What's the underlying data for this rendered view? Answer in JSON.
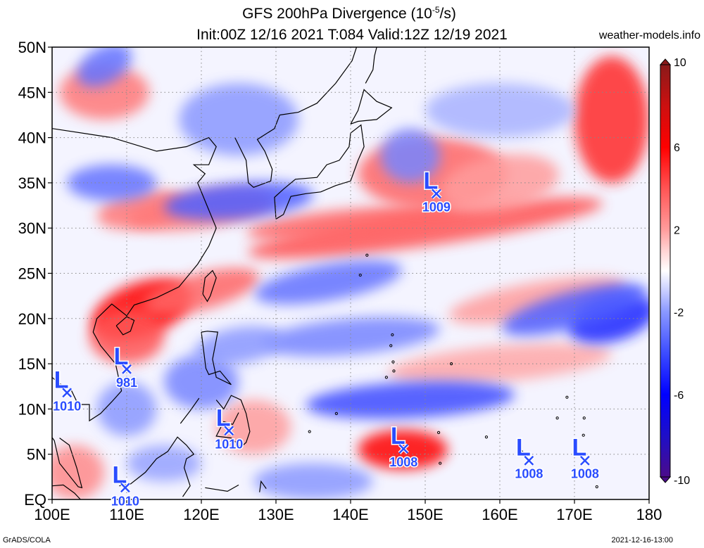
{
  "title": {
    "line1_prefix": "GFS 200hPa Divergence (10",
    "line1_exp": "-5",
    "line1_suffix": "/s)",
    "line2": "Init:00Z 12/16 2021 T:084 Valid:12Z 12/19 2021"
  },
  "site": "weather-models.info",
  "footer": {
    "credit": "GrADS/COLA",
    "timestamp": "2021-12-16-13:00"
  },
  "map": {
    "lon_range": [
      100,
      180
    ],
    "lat_range": [
      0,
      50
    ],
    "lon_ticks": [
      {
        "value": 100,
        "label": "100E"
      },
      {
        "value": 110,
        "label": "110E"
      },
      {
        "value": 120,
        "label": "120E"
      },
      {
        "value": 130,
        "label": "130E"
      },
      {
        "value": 140,
        "label": "140E"
      },
      {
        "value": 150,
        "label": "150E"
      },
      {
        "value": 160,
        "label": "160E"
      },
      {
        "value": 170,
        "label": "170E"
      },
      {
        "value": 180,
        "label": "180"
      }
    ],
    "lat_ticks": [
      {
        "value": 50,
        "label": "50N"
      },
      {
        "value": 45,
        "label": "45N"
      },
      {
        "value": 40,
        "label": "40N"
      },
      {
        "value": 35,
        "label": "35N"
      },
      {
        "value": 30,
        "label": "30N"
      },
      {
        "value": 25,
        "label": "25N"
      },
      {
        "value": 20,
        "label": "20N"
      },
      {
        "value": 15,
        "label": "15N"
      },
      {
        "value": 10,
        "label": "10N"
      },
      {
        "value": 5,
        "label": "5N"
      },
      {
        "value": 0,
        "label": "EQ"
      }
    ],
    "grid_lines": "dotted",
    "colors": {
      "positive": "#ff0000",
      "negative": "#0000ee",
      "neutral": "#ffffff",
      "low_marker": "#2a4cff",
      "coast": "#000000"
    }
  },
  "colorbar": {
    "range": [
      -10,
      10
    ],
    "labels": [
      {
        "value": 10,
        "label": "10"
      },
      {
        "value": 6,
        "label": "6"
      },
      {
        "value": 2,
        "label": "2"
      },
      {
        "value": -2,
        "label": "-2"
      },
      {
        "value": -6,
        "label": "-6"
      },
      {
        "value": -10,
        "label": "-10"
      }
    ],
    "stops": [
      {
        "value": -10,
        "color": "#4b0b8a"
      },
      {
        "value": -8,
        "color": "#1e0fc8"
      },
      {
        "value": -6,
        "color": "#0000ff"
      },
      {
        "value": -4,
        "color": "#3c4cff"
      },
      {
        "value": -2,
        "color": "#8a98ff"
      },
      {
        "value": -1,
        "color": "#c6ccff"
      },
      {
        "value": 0,
        "color": "#ffffff"
      },
      {
        "value": 1,
        "color": "#ffd2d2"
      },
      {
        "value": 2,
        "color": "#ff9c9c"
      },
      {
        "value": 4,
        "color": "#ff5454"
      },
      {
        "value": 6,
        "color": "#ff0000"
      },
      {
        "value": 8,
        "color": "#cc1010"
      },
      {
        "value": 10,
        "color": "#8a1a1a"
      }
    ]
  },
  "lows": [
    {
      "lon": 151.5,
      "lat": 33.8,
      "pressure": "1009"
    },
    {
      "lon": 110.0,
      "lat": 14.4,
      "pressure": "981"
    },
    {
      "lon": 102.0,
      "lat": 11.8,
      "pressure": "1010"
    },
    {
      "lon": 123.7,
      "lat": 7.6,
      "pressure": "1010"
    },
    {
      "lon": 147.1,
      "lat": 5.6,
      "pressure": "1008"
    },
    {
      "lon": 163.9,
      "lat": 4.3,
      "pressure": "1008"
    },
    {
      "lon": 171.4,
      "lat": 4.3,
      "pressure": "1008"
    },
    {
      "lon": 109.8,
      "lat": 1.3,
      "pressure": "1010"
    }
  ],
  "field_features": [
    {
      "lon": 112,
      "lat": 21,
      "sx": 7,
      "sy": 3,
      "v": 6,
      "rot": -20
    },
    {
      "lon": 110,
      "lat": 18,
      "sx": 5,
      "sy": 3,
      "v": 4,
      "rot": 0
    },
    {
      "lon": 120,
      "lat": 23,
      "sx": 8,
      "sy": 2,
      "v": 3.5,
      "rot": -15
    },
    {
      "lon": 150,
      "lat": 30,
      "sx": 24,
      "sy": 2,
      "v": 4,
      "rot": -8
    },
    {
      "lon": 140,
      "lat": 30.5,
      "sx": 14,
      "sy": 1.6,
      "v": 3.5,
      "rot": -5
    },
    {
      "lon": 151,
      "lat": 36,
      "sx": 10,
      "sy": 4,
      "v": 3.5,
      "rot": 0
    },
    {
      "lon": 175,
      "lat": 42,
      "sx": 5,
      "sy": 7,
      "v": 5,
      "rot": 0
    },
    {
      "lon": 147,
      "lat": 5.5,
      "sx": 6,
      "sy": 2.2,
      "v": 6,
      "rot": 0
    },
    {
      "lon": 107,
      "lat": 45,
      "sx": 6,
      "sy": 3,
      "v": 3,
      "rot": 0
    },
    {
      "lon": 120,
      "lat": 32,
      "sx": 10,
      "sy": 2,
      "v": 3,
      "rot": -8
    },
    {
      "lon": 165,
      "lat": 22,
      "sx": 12,
      "sy": 2,
      "v": 2,
      "rot": -10
    },
    {
      "lon": 160,
      "lat": 15,
      "sx": 15,
      "sy": 2,
      "v": 1.8,
      "rot": -5
    },
    {
      "lon": 127,
      "lat": 8,
      "sx": 5,
      "sy": 3,
      "v": 2,
      "rot": 0
    },
    {
      "lon": 103,
      "lat": 3,
      "sx": 4,
      "sy": 3,
      "v": 2.5,
      "rot": 0
    },
    {
      "lon": 160,
      "lat": 35,
      "sx": 8,
      "sy": 3,
      "v": 2,
      "rot": -10
    },
    {
      "lon": 112,
      "lat": 32,
      "sx": 6,
      "sy": 2,
      "v": 3,
      "rot": -10
    },
    {
      "lon": 175,
      "lat": 20,
      "sx": 6,
      "sy": 2.5,
      "v": -5,
      "rot": -15
    },
    {
      "lon": 170,
      "lat": 21,
      "sx": 10,
      "sy": 2,
      "v": -3.5,
      "rot": -15
    },
    {
      "lon": 148,
      "lat": 11,
      "sx": 14,
      "sy": 2,
      "v": -4,
      "rot": -3
    },
    {
      "lon": 137,
      "lat": 24,
      "sx": 10,
      "sy": 2,
      "v": -3,
      "rot": -10
    },
    {
      "lon": 125,
      "lat": 33,
      "sx": 10,
      "sy": 2,
      "v": -3.5,
      "rot": -5
    },
    {
      "lon": 108,
      "lat": 35,
      "sx": 6,
      "sy": 2,
      "v": -3,
      "rot": 0
    },
    {
      "lon": 140,
      "lat": 18,
      "sx": 12,
      "sy": 2,
      "v": -2.5,
      "rot": -5
    },
    {
      "lon": 120,
      "lat": 13,
      "sx": 5,
      "sy": 3,
      "v": -2.5,
      "rot": 0
    },
    {
      "lon": 110,
      "lat": 10,
      "sx": 4,
      "sy": 3,
      "v": -2,
      "rot": 0
    },
    {
      "lon": 107,
      "lat": 48,
      "sx": 4,
      "sy": 2,
      "v": -3,
      "rot": -30
    },
    {
      "lon": 125,
      "lat": 42,
      "sx": 8,
      "sy": 4,
      "v": -2,
      "rot": 0
    },
    {
      "lon": 148,
      "lat": 38,
      "sx": 4,
      "sy": 3,
      "v": -2.5,
      "rot": 0
    },
    {
      "lon": 125,
      "lat": 17,
      "sx": 6,
      "sy": 2,
      "v": -2,
      "rot": -10
    },
    {
      "lon": 160,
      "lat": 43,
      "sx": 10,
      "sy": 3,
      "v": -1.5,
      "rot": 0
    },
    {
      "lon": 135,
      "lat": 2,
      "sx": 8,
      "sy": 2,
      "v": -2,
      "rot": 0
    },
    {
      "lon": 115,
      "lat": 4,
      "sx": 5,
      "sy": 2,
      "v": -1.8,
      "rot": 0
    }
  ]
}
